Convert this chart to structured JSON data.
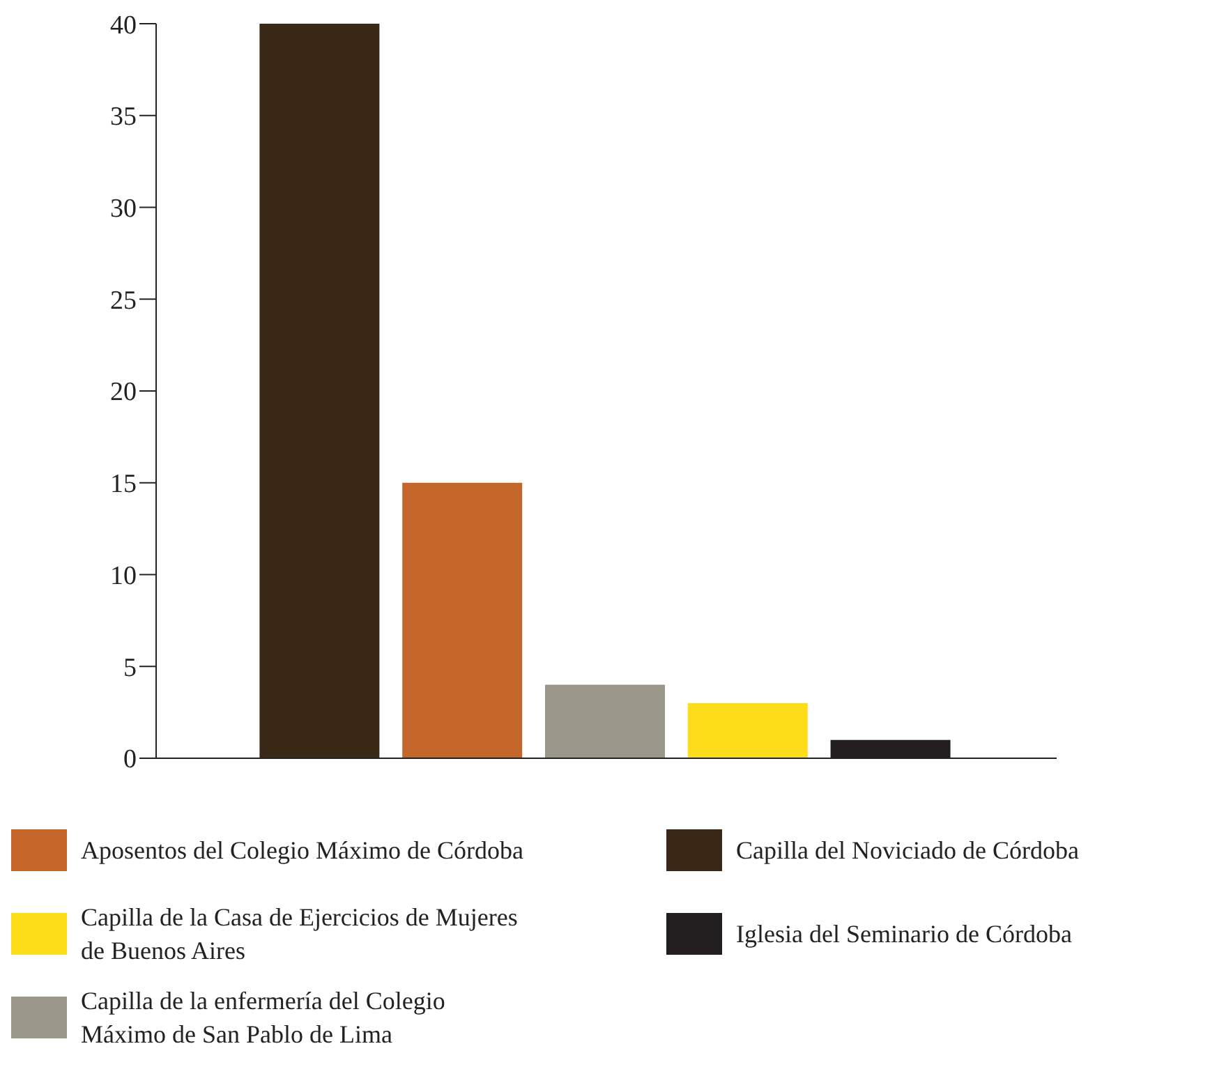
{
  "chart_data": {
    "type": "bar",
    "categories": [
      null,
      null,
      null,
      null,
      null
    ],
    "series": [
      {
        "name": "Capilla del Noviciado de Córdoba",
        "color": "#3a2817",
        "values": [
          40,
          null,
          null,
          null,
          null
        ]
      },
      {
        "name": "Aposentos del Colegio Máximo de Córdoba",
        "color": "#c4662a",
        "values": [
          null,
          15,
          null,
          null,
          null
        ]
      },
      {
        "name": "Capilla de la enfermería del Colegio Máximo de San Pablo de Lima",
        "color": "#9a968a",
        "values": [
          null,
          null,
          4,
          null,
          null
        ]
      },
      {
        "name": "Capilla de la Casa de Ejercicios de Mujeres de Buenos Aires",
        "color": "#fddd1a",
        "values": [
          null,
          null,
          null,
          3,
          null
        ]
      },
      {
        "name": "Iglesia del Seminario de Córdoba",
        "color": "#231f20",
        "values": [
          null,
          null,
          null,
          null,
          1
        ]
      }
    ],
    "ylim": [
      0,
      40
    ],
    "yticks": [
      0,
      5,
      10,
      15,
      20,
      25,
      30,
      35,
      40
    ],
    "tick_labels": "y",
    "grid": false,
    "legend": "bottom"
  }
}
